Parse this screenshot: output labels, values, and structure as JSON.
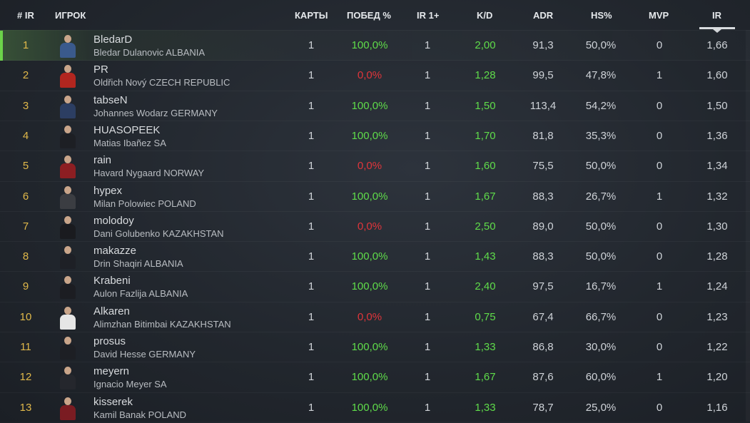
{
  "header": {
    "rank": "# IR",
    "player": "ИГРОК",
    "maps": "КАРТЫ",
    "winrate": "ПОБЕД %",
    "ir1": "IR 1+",
    "kd": "K/D",
    "adr": "ADR",
    "hs": "HS%",
    "mvp": "MVP",
    "ir": "IR"
  },
  "colors": {
    "rank": "#e0b84a",
    "positive": "#5fdc4a",
    "negative": "#e0353b",
    "highlight": "#6cd34a"
  },
  "rows": [
    {
      "rank": "1",
      "nick": "BledarD",
      "fullname": "Bledar Dulanovic ALBANIA",
      "maps": "1",
      "winrate": "100,0%",
      "win": true,
      "ir1": "1",
      "kd": "2,00",
      "adr": "91,3",
      "hs": "50,0%",
      "mvp": "0",
      "ir": "1,66",
      "jersey": "#3a5a8c"
    },
    {
      "rank": "2",
      "nick": "PR",
      "fullname": "Oldřich Nový CZECH REPUBLIC",
      "maps": "1",
      "winrate": "0,0%",
      "win": false,
      "ir1": "1",
      "kd": "1,28",
      "adr": "99,5",
      "hs": "47,8%",
      "mvp": "1",
      "ir": "1,60",
      "jersey": "#b2261f"
    },
    {
      "rank": "3",
      "nick": "tabseN",
      "fullname": "Johannes Wodarz GERMANY",
      "maps": "1",
      "winrate": "100,0%",
      "win": true,
      "ir1": "1",
      "kd": "1,50",
      "adr": "113,4",
      "hs": "54,2%",
      "mvp": "0",
      "ir": "1,50",
      "jersey": "#2c3e62"
    },
    {
      "rank": "4",
      "nick": "HUASOPEEK",
      "fullname": "Matias Ibañez SA",
      "maps": "1",
      "winrate": "100,0%",
      "win": true,
      "ir1": "1",
      "kd": "1,70",
      "adr": "81,8",
      "hs": "35,3%",
      "mvp": "0",
      "ir": "1,36",
      "jersey": "#1d1f24"
    },
    {
      "rank": "5",
      "nick": "rain",
      "fullname": "Havard Nygaard NORWAY",
      "maps": "1",
      "winrate": "0,0%",
      "win": false,
      "ir1": "1",
      "kd": "1,60",
      "adr": "75,5",
      "hs": "50,0%",
      "mvp": "0",
      "ir": "1,34",
      "jersey": "#8c1e22"
    },
    {
      "rank": "6",
      "nick": "hypex",
      "fullname": "Milan Polowiec POLAND",
      "maps": "1",
      "winrate": "100,0%",
      "win": true,
      "ir1": "1",
      "kd": "1,67",
      "adr": "88,3",
      "hs": "26,7%",
      "mvp": "1",
      "ir": "1,32",
      "jersey": "#3b3d42"
    },
    {
      "rank": "7",
      "nick": "molodoy",
      "fullname": "Dani  Golubenko KAZAKHSTAN",
      "maps": "1",
      "winrate": "0,0%",
      "win": false,
      "ir1": "1",
      "kd": "2,50",
      "adr": "89,0",
      "hs": "50,0%",
      "mvp": "0",
      "ir": "1,30",
      "jersey": "#1a1b1f"
    },
    {
      "rank": "8",
      "nick": "makazze",
      "fullname": "Drin Shaqiri ALBANIA",
      "maps": "1",
      "winrate": "100,0%",
      "win": true,
      "ir1": "1",
      "kd": "1,43",
      "adr": "88,3",
      "hs": "50,0%",
      "mvp": "0",
      "ir": "1,28",
      "jersey": "#1e2026"
    },
    {
      "rank": "9",
      "nick": "Krabeni",
      "fullname": "Aulon Fazlija ALBANIA",
      "maps": "1",
      "winrate": "100,0%",
      "win": true,
      "ir1": "1",
      "kd": "2,40",
      "adr": "97,5",
      "hs": "16,7%",
      "mvp": "1",
      "ir": "1,24",
      "jersey": "#1c1d22"
    },
    {
      "rank": "10",
      "nick": "Alkaren",
      "fullname": "Alimzhan Bitimbai KAZAKHSTAN",
      "maps": "1",
      "winrate": "0,0%",
      "win": false,
      "ir1": "1",
      "kd": "0,75",
      "adr": "67,4",
      "hs": "66,7%",
      "mvp": "0",
      "ir": "1,23",
      "jersey": "#e6e6e6"
    },
    {
      "rank": "11",
      "nick": "prosus",
      "fullname": "David Hesse GERMANY",
      "maps": "1",
      "winrate": "100,0%",
      "win": true,
      "ir1": "1",
      "kd": "1,33",
      "adr": "86,8",
      "hs": "30,0%",
      "mvp": "0",
      "ir": "1,22",
      "jersey": "#1d1f24"
    },
    {
      "rank": "12",
      "nick": "meyern",
      "fullname": "Ignacio Meyer SA",
      "maps": "1",
      "winrate": "100,0%",
      "win": true,
      "ir1": "1",
      "kd": "1,67",
      "adr": "87,6",
      "hs": "60,0%",
      "mvp": "1",
      "ir": "1,20",
      "jersey": "#25272d"
    },
    {
      "rank": "13",
      "nick": "kisserek",
      "fullname": "Kamil Banak POLAND",
      "maps": "1",
      "winrate": "100,0%",
      "win": true,
      "ir1": "1",
      "kd": "1,33",
      "adr": "78,7",
      "hs": "25,0%",
      "mvp": "0",
      "ir": "1,16",
      "jersey": "#7a1c22"
    }
  ]
}
